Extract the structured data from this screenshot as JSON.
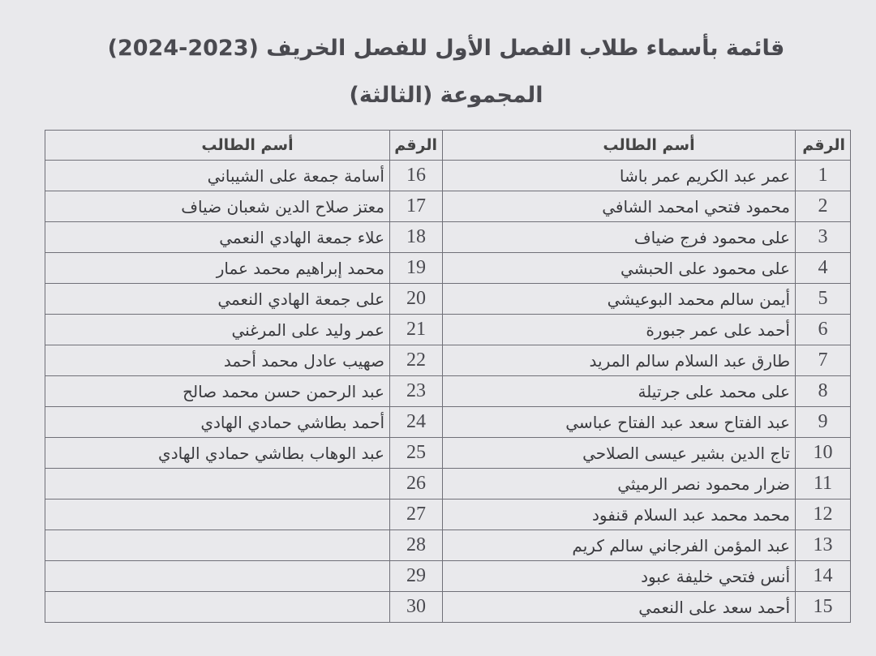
{
  "title": "قائمة بأسماء طلاب الفصل الأول للفصل الخريف (2023-2024)",
  "subtitle": "المجموعة (الثالثة)",
  "headers": {
    "number": "الرقم",
    "name": "أسم الطالب"
  },
  "right_column": [
    {
      "number": "1",
      "name": "عمر عبد الكريم عمر باشا"
    },
    {
      "number": "2",
      "name": "محمود فتحي امحمد الشافي"
    },
    {
      "number": "3",
      "name": "على محمود فرج ضياف"
    },
    {
      "number": "4",
      "name": "على محمود على الحبشي"
    },
    {
      "number": "5",
      "name": "أيمن سالم محمد البوعيشي"
    },
    {
      "number": "6",
      "name": "أحمد على عمر جبورة"
    },
    {
      "number": "7",
      "name": "طارق عبد السلام سالم المريد"
    },
    {
      "number": "8",
      "name": "على محمد على جرتيلة"
    },
    {
      "number": "9",
      "name": "عبد الفتاح سعد عبد الفتاح عباسي"
    },
    {
      "number": "10",
      "name": "تاج الدين بشير عيسى الصلاحي"
    },
    {
      "number": "11",
      "name": "ضرار محمود نصر الرميثي"
    },
    {
      "number": "12",
      "name": "محمد محمد عبد السلام قنفود"
    },
    {
      "number": "13",
      "name": "عبد المؤمن الفرجاني سالم كريم"
    },
    {
      "number": "14",
      "name": "أنس فتحي خليفة عبود"
    },
    {
      "number": "15",
      "name": "أحمد سعد على النعمي"
    }
  ],
  "left_column": [
    {
      "number": "16",
      "name": "أسامة جمعة على الشيباني"
    },
    {
      "number": "17",
      "name": "معتز صلاح الدين شعبان ضياف"
    },
    {
      "number": "18",
      "name": "علاء جمعة الهادي النعمي"
    },
    {
      "number": "19",
      "name": "محمد إبراهيم محمد عمار"
    },
    {
      "number": "20",
      "name": "على جمعة الهادي النعمي"
    },
    {
      "number": "21",
      "name": "عمر وليد على المرغني"
    },
    {
      "number": "22",
      "name": "صهيب عادل محمد أحمد"
    },
    {
      "number": "23",
      "name": "عبد الرحمن حسن محمد صالح"
    },
    {
      "number": "24",
      "name": "أحمد بطاشي حمادي الهادي"
    },
    {
      "number": "25",
      "name": "عبد الوهاب بطاشي حمادي الهادي"
    },
    {
      "number": "26",
      "name": ""
    },
    {
      "number": "27",
      "name": ""
    },
    {
      "number": "28",
      "name": ""
    },
    {
      "number": "29",
      "name": ""
    },
    {
      "number": "30",
      "name": ""
    }
  ]
}
